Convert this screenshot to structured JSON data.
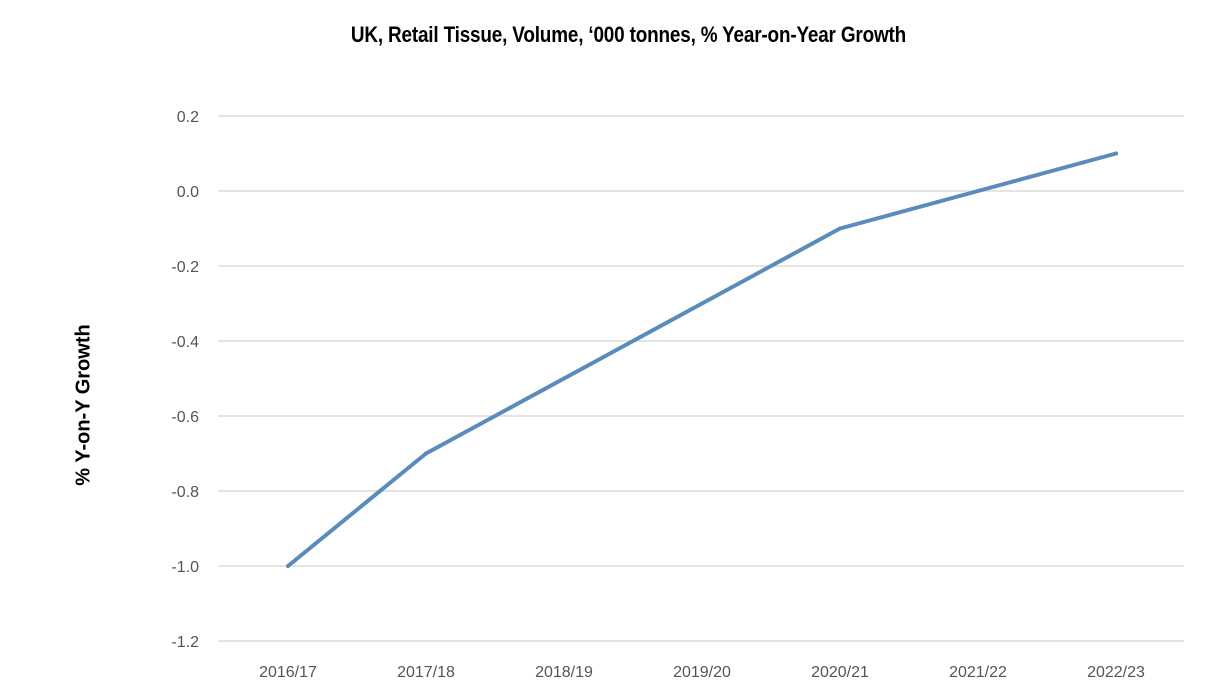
{
  "chart_data": {
    "type": "line",
    "title": "UK, Retail Tissue, Volume, ‘000 tonnes, % Year-on-Year Growth",
    "xlabel": "",
    "ylabel": "% Y-on-Y Growth",
    "categories": [
      "2016/17",
      "2017/18",
      "2018/19",
      "2019/20",
      "2020/21",
      "2021/22",
      "2022/23"
    ],
    "series": [
      {
        "values": [
          -1.0,
          -0.7,
          -0.5,
          -0.3,
          -0.1,
          0.0,
          0.1
        ]
      }
    ],
    "ylim": [
      -1.2,
      0.2
    ],
    "yticks": [
      "0.2",
      "0.0",
      "-0.2",
      "-0.4",
      "-0.6",
      "-0.8",
      "-1.0",
      "-1.2"
    ],
    "grid": true,
    "colors": {
      "line": "#5b8bbb",
      "grid": "#dcdcdc"
    }
  }
}
